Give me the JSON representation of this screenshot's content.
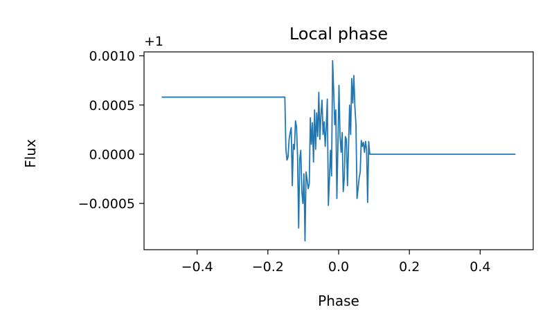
{
  "chart_data": {
    "type": "line",
    "title": "Local phase",
    "xlabel": "Phase",
    "ylabel": "Flux",
    "offset_label": "+1",
    "xlim": [
      -0.55,
      0.55
    ],
    "ylim": [
      -0.00097,
      0.00104
    ],
    "x_ticks": [
      -0.4,
      -0.2,
      0.0,
      0.2,
      0.4
    ],
    "x_tick_labels": [
      "−0.4",
      "−0.2",
      "0.0",
      "0.2",
      "0.4"
    ],
    "y_ticks": [
      -0.0005,
      0.0,
      0.0005,
      0.001
    ],
    "y_tick_labels": [
      "−0.0005",
      "0.0000",
      "0.0005",
      "0.0010"
    ],
    "grid": false,
    "legend": "none",
    "series": [
      {
        "color": "#1f77b4",
        "x": [
          -0.5,
          -0.152,
          -0.149,
          -0.146,
          -0.143,
          -0.14,
          -0.137,
          -0.134,
          -0.131,
          -0.128,
          -0.125,
          -0.122,
          -0.119,
          -0.116,
          -0.113,
          -0.11,
          -0.107,
          -0.104,
          -0.101,
          -0.098,
          -0.095,
          -0.092,
          -0.089,
          -0.086,
          -0.083,
          -0.08,
          -0.077,
          -0.074,
          -0.071,
          -0.068,
          -0.065,
          -0.062,
          -0.059,
          -0.056,
          -0.053,
          -0.05,
          -0.047,
          -0.044,
          -0.041,
          -0.038,
          -0.035,
          -0.032,
          -0.029,
          -0.026,
          -0.023,
          -0.02,
          -0.017,
          -0.014,
          -0.011,
          -0.008,
          -0.005,
          -0.002,
          0.001,
          0.004,
          0.007,
          0.01,
          0.013,
          0.016,
          0.019,
          0.022,
          0.025,
          0.028,
          0.031,
          0.034,
          0.037,
          0.04,
          0.043,
          0.046,
          0.049,
          0.052,
          0.055,
          0.058,
          0.061,
          0.064,
          0.067,
          0.07,
          0.073,
          0.076,
          0.079,
          0.082,
          0.085,
          0.088,
          0.091,
          0.094,
          0.097,
          0.1,
          0.103,
          0.106,
          0.109,
          0.112,
          0.115,
          0.118,
          0.121,
          0.124,
          0.127,
          0.13,
          0.133,
          0.136,
          0.139,
          0.142,
          0.145,
          0.148,
          0.151,
          0.5
        ],
        "y": [
          0.00058,
          0.00058,
          5e-05,
          -6e-05,
          -3e-05,
          0.00015,
          0.00022,
          0.00027,
          -0.00032,
          0.0001,
          5e-05,
          0.00034,
          0.00028,
          -3e-05,
          -0.00075,
          -5e-05,
          4e-05,
          -0.00038,
          -0.0005,
          -0.0002,
          -0.00088,
          -0.00018,
          -0.00026,
          -0.00035,
          -0.0003,
          0.00037,
          0.0001,
          0.00032,
          -8e-05,
          0.00045,
          5e-05,
          0.00042,
          0.00018,
          0.00063,
          0.00015,
          0.0004,
          0.00055,
          0.0002,
          0.00033,
          8e-05,
          0.00028,
          0.00056,
          -0.00052,
          -0.00025,
          4e-05,
          -0.00022,
          0.00095,
          0.00065,
          0.0003,
          0.00045,
          -0.00045,
          0.0001,
          0.0007,
          0.00018,
          2e-05,
          0.00022,
          -0.00038,
          -0.00024,
          0.00018,
          0.00015,
          -0.00032,
          8e-05,
          0.0005,
          0.0002,
          0.00077,
          0.00052,
          0.0008,
          0.00048,
          0.0003,
          -0.00045,
          -0.00035,
          -0.00024,
          -0.00018,
          0.00014,
          8e-05,
          0.00012,
          2e-05,
          0.00013,
          5e-05,
          -0.00049,
          0.00013,
          0.0,
          0.0,
          0.0,
          0.0,
          0.0,
          0.0,
          0.0,
          0.0,
          0.0,
          0.0,
          0.0,
          0.0,
          0.0,
          0.0,
          0.0,
          0.0,
          0.0,
          0.0,
          0.0,
          0.0,
          0.0,
          0.0,
          0.0
        ]
      }
    ]
  }
}
